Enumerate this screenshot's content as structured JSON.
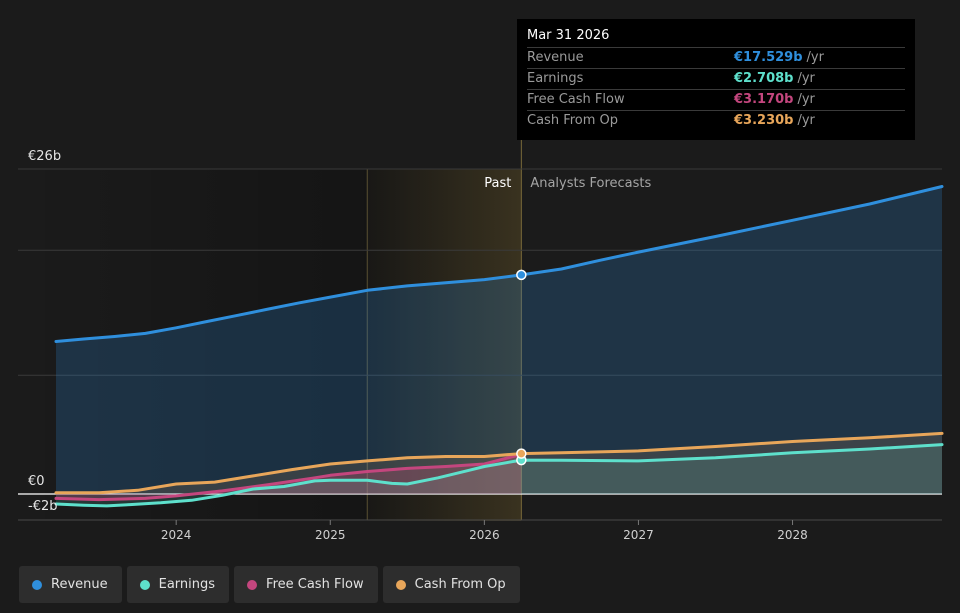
{
  "chart_data": {
    "type": "area",
    "x_range": [
      2023.22,
      2028.97
    ],
    "ylim": [
      -2,
      26
    ],
    "y_tick_labels": [
      {
        "value": 26,
        "label": "€26b"
      },
      {
        "value": 0,
        "label": "€0"
      },
      {
        "value": -2,
        "label": "-€2b"
      }
    ],
    "x_ticks": [
      {
        "value": 2024,
        "label": "2024"
      },
      {
        "value": 2025,
        "label": "2025"
      },
      {
        "value": 2026,
        "label": "2026"
      },
      {
        "value": 2027,
        "label": "2027"
      },
      {
        "value": 2028,
        "label": "2028"
      }
    ],
    "past_label": "Past",
    "forecast_label": "Analysts Forecasts",
    "past_end_x": 2026.24,
    "highlight_start_x": 2025.24,
    "series": [
      {
        "name": "Revenue",
        "color": "#2f8fdd",
        "points": [
          [
            2023.22,
            12.2
          ],
          [
            2023.4,
            12.4
          ],
          [
            2023.6,
            12.6
          ],
          [
            2023.8,
            12.85
          ],
          [
            2024.0,
            13.3
          ],
          [
            2024.2,
            13.8
          ],
          [
            2024.4,
            14.3
          ],
          [
            2024.6,
            14.8
          ],
          [
            2024.8,
            15.3
          ],
          [
            2025.0,
            15.75
          ],
          [
            2025.24,
            16.3
          ],
          [
            2025.5,
            16.65
          ],
          [
            2025.75,
            16.9
          ],
          [
            2026.0,
            17.15
          ],
          [
            2026.24,
            17.53
          ],
          [
            2026.5,
            18.0
          ],
          [
            2026.75,
            18.7
          ],
          [
            2027.0,
            19.35
          ],
          [
            2027.5,
            20.6
          ],
          [
            2028.0,
            21.9
          ],
          [
            2028.5,
            23.2
          ],
          [
            2028.97,
            24.6
          ]
        ]
      },
      {
        "name": "Earnings",
        "color": "#5ee0cc",
        "points": [
          [
            2023.22,
            -0.8
          ],
          [
            2023.4,
            -0.9
          ],
          [
            2023.55,
            -0.95
          ],
          [
            2023.7,
            -0.85
          ],
          [
            2023.9,
            -0.7
          ],
          [
            2024.1,
            -0.5
          ],
          [
            2024.3,
            -0.1
          ],
          [
            2024.5,
            0.4
          ],
          [
            2024.7,
            0.6
          ],
          [
            2024.9,
            1.05
          ],
          [
            2025.0,
            1.1
          ],
          [
            2025.24,
            1.1
          ],
          [
            2025.4,
            0.85
          ],
          [
            2025.5,
            0.8
          ],
          [
            2025.7,
            1.3
          ],
          [
            2025.9,
            1.9
          ],
          [
            2026.0,
            2.2
          ],
          [
            2026.24,
            2.71
          ],
          [
            2026.5,
            2.7
          ],
          [
            2027.0,
            2.65
          ],
          [
            2027.5,
            2.9
          ],
          [
            2028.0,
            3.3
          ],
          [
            2028.5,
            3.6
          ],
          [
            2028.97,
            3.95
          ]
        ]
      },
      {
        "name": "Free Cash Flow",
        "color": "#c4467e",
        "points": [
          [
            2023.22,
            -0.35
          ],
          [
            2023.5,
            -0.45
          ],
          [
            2023.8,
            -0.35
          ],
          [
            2024.0,
            -0.15
          ],
          [
            2024.3,
            0.25
          ],
          [
            2024.6,
            0.75
          ],
          [
            2024.9,
            1.3
          ],
          [
            2025.0,
            1.5
          ],
          [
            2025.24,
            1.8
          ],
          [
            2025.5,
            2.05
          ],
          [
            2025.75,
            2.2
          ],
          [
            2026.0,
            2.4
          ],
          [
            2026.24,
            3.17
          ]
        ]
      },
      {
        "name": "Cash From Op",
        "color": "#e8a65a",
        "points": [
          [
            2023.22,
            0.1
          ],
          [
            2023.5,
            0.1
          ],
          [
            2023.75,
            0.3
          ],
          [
            2024.0,
            0.8
          ],
          [
            2024.25,
            0.95
          ],
          [
            2024.5,
            1.45
          ],
          [
            2024.75,
            1.95
          ],
          [
            2025.0,
            2.4
          ],
          [
            2025.24,
            2.65
          ],
          [
            2025.5,
            2.9
          ],
          [
            2025.75,
            3.0
          ],
          [
            2026.0,
            3.0
          ],
          [
            2026.24,
            3.23
          ],
          [
            2026.5,
            3.3
          ],
          [
            2027.0,
            3.45
          ],
          [
            2027.5,
            3.8
          ],
          [
            2028.0,
            4.2
          ],
          [
            2028.5,
            4.5
          ],
          [
            2028.97,
            4.85
          ]
        ]
      }
    ]
  },
  "tooltip": {
    "date": "Mar 31 2026",
    "x": 2026.24,
    "rows": [
      {
        "label": "Revenue",
        "value": "€17.529b",
        "unit": "/yr",
        "color": "#2f8fdd"
      },
      {
        "label": "Earnings",
        "value": "€2.708b",
        "unit": "/yr",
        "color": "#5ee0cc"
      },
      {
        "label": "Free Cash Flow",
        "value": "€3.170b",
        "unit": "/yr",
        "color": "#c4467e"
      },
      {
        "label": "Cash From Op",
        "value": "€3.230b",
        "unit": "/yr",
        "color": "#e8a65a"
      }
    ]
  },
  "legend": [
    {
      "label": "Revenue",
      "color": "#2f8fdd"
    },
    {
      "label": "Earnings",
      "color": "#5ee0cc"
    },
    {
      "label": "Free Cash Flow",
      "color": "#c4467e"
    },
    {
      "label": "Cash From Op",
      "color": "#e8a65a"
    }
  ]
}
